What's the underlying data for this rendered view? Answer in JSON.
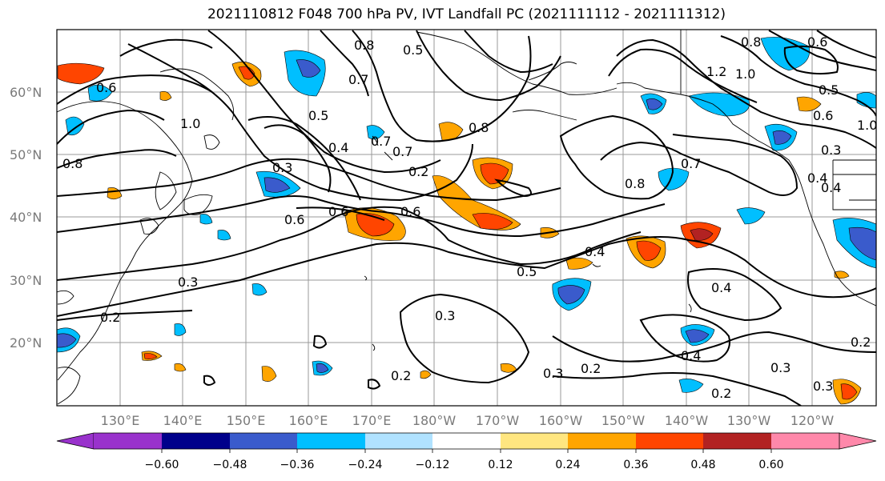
{
  "title": "2021110812 F048 700 hPa PV, IVT Landfall PC (2021111112 - 2021111312)",
  "lat_labels": [
    "60°N",
    "50°N",
    "40°N",
    "30°N",
    "20°N"
  ],
  "lon_labels": [
    "130°E",
    "140°E",
    "150°E",
    "160°E",
    "170°E",
    "180°W",
    "170°W",
    "160°W",
    "150°W",
    "140°W",
    "130°W",
    "120°W"
  ],
  "contour_labels": [
    "0.8",
    "0.6",
    "0.5",
    "0.8",
    "0.7",
    "1.0",
    "0.7",
    "0.4",
    "0.5",
    "0.7",
    "0.8",
    "0.6",
    "0.3",
    "0.5",
    "0.4",
    "0.6",
    "0.7",
    "0.8",
    "0.4",
    "0.3",
    "0.2",
    "0.3",
    "0.5",
    "0.4",
    "0.2",
    "0.3",
    "0.2",
    "0.4",
    "0.4",
    "0.3",
    "0.2",
    "0.3",
    "0.2",
    "0.6",
    "1.2",
    "1.0",
    "0.8",
    "0.6",
    "1.0",
    "0.3",
    "0.2",
    "0.6"
  ],
  "colorbar": {
    "ticks": [
      "−0.60",
      "−0.48",
      "−0.36",
      "−0.24",
      "−0.12",
      "0.12",
      "0.24",
      "0.36",
      "0.48",
      "0.60"
    ],
    "colors": [
      "#9932cc",
      "#00008b",
      "#3a5bcc",
      "#00bfff",
      "#b0e2ff",
      "#ffffff",
      "#ffe680",
      "#ffa500",
      "#ff4500",
      "#b22222",
      "#ff88aa"
    ]
  },
  "anomalies": [
    {
      "name": "anom-alaska-neg",
      "color": "#3a5bcc"
    },
    {
      "name": "anom-dateline-pos",
      "color": "#ff4500"
    }
  ]
}
